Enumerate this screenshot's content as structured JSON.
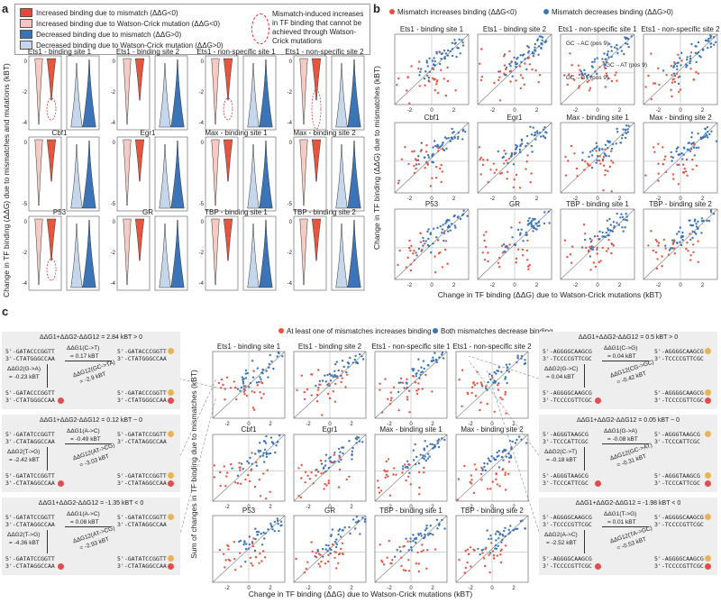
{
  "panels": {
    "a": "a",
    "b": "b",
    "c": "c"
  },
  "legend_a": {
    "items": [
      {
        "label": "Increased binding due to mismatch (ΔΔG<0)",
        "color": "#e04a3a"
      },
      {
        "label": "Increased binding due to Watson-Crick mutation (ΔΔG<0)",
        "color": "#f5c6c0"
      },
      {
        "label": "Decreased binding due to mismatch (ΔΔG>0)",
        "color": "#3a73b5"
      },
      {
        "label": "Decreased binding due to Watson-Crick mutation (ΔΔG>0)",
        "color": "#c4d6ec"
      }
    ],
    "dashed_note": "Mismatch-induced increases in TF binding that cannot be achieved through Watson-Crick mutations"
  },
  "a": {
    "ylabel": "Change in TF binding (ΔΔG) due to mismatches and mutations (kBT)",
    "titles": [
      "Ets1 - binding site 1",
      "Ets1 - binding site 2",
      "Ets1 - non-specific site 1",
      "Ets1 - non-specific site 2",
      "Cbf1",
      "Egr1",
      "Max - binding site 1",
      "Max - binding site 2",
      "P53",
      "GR",
      "TBP - binding site 1",
      "TBP - binding site 2"
    ]
  },
  "b": {
    "legend": [
      "Mismatch increases binding (ΔΔG<0)",
      "Mismatch decreases binding (ΔΔG>0)"
    ],
    "ylabel": "Change in TF binding (ΔΔG) due to mismatches (kBT)",
    "xlabel": "Change in TF binding (ΔΔG) due to Watson-Crick mutations (kBT)",
    "titles": [
      "Ets1 - binding site 1",
      "Ets1 - binding site 2",
      "Ets1 - non-specific site 1",
      "Ets1 - non-specific site 2",
      "Cbf1",
      "Egr1",
      "Max - binding site 1",
      "Max - binding site 2",
      "P53",
      "GR",
      "TBP - binding site 1",
      "TBP - binding site 2"
    ],
    "inset_labels": [
      "GC→AC (pos 9)",
      "GC→AT (pos 9)",
      "GC→GT (pos 9)"
    ]
  },
  "c": {
    "legend": [
      "At least one of mismatches increases binding",
      "Both mismatches decrease binding"
    ],
    "ylabel": "Sum of changes in TF binding due to mismatches (kBT)",
    "xlabel": "Change in TF binding (ΔΔG) due to Watson-Crick mutations (kBT)",
    "titles": [
      "Ets1 - binding site 1",
      "Ets1 - binding site 2",
      "Ets1 - non-specific site 1",
      "Ets1 - non-specific site 2",
      "Cbf1",
      "Egr1",
      "Max - binding site 1",
      "Max - binding site 2",
      "P53",
      "GR",
      "TBP - binding site 1",
      "TBP - binding site 2"
    ],
    "boxes": [
      {
        "header": "ΔΔG1+ΔΔG2-ΔΔG12 = 2.84 kBT > 0",
        "s1": "5'-GATACCCGGTT",
        "s2": "3'-CTATGGGCCAA",
        "g1": "ΔΔG1(C->T)",
        "v1": "= 0.17 kBT",
        "g2": "ΔΔG2(G->A)",
        "v2": "= -0.23 kBT",
        "g12": "ΔΔG12(GC->TA)",
        "v12": "= -2.9 kBT"
      },
      {
        "header": "ΔΔG1+ΔΔG2-ΔΔG12 = 0.12 kBT ~ 0",
        "s1": "5'-GATATCCGGTT",
        "s2": "3'-CTATAGGCCAA",
        "g1": "ΔΔG1(A->C)",
        "v1": "= -0.49 kBT",
        "g2": "ΔΔG2(T->G)",
        "v2": "= -2.42 kBT",
        "g12": "ΔΔG12(AT->CG)",
        "v12": "= -3.03 kBT"
      },
      {
        "header": "ΔΔG1+ΔΔG2-ΔΔG12 = -1.35 kBT < 0",
        "s1": "5'-GATATCCGGTT",
        "s2": "3'-CTATAGGCCAA",
        "g1": "ΔΔG1(A->C)",
        "v1": "= 0.08 kBT",
        "g2": "ΔΔG2(T->G)",
        "v2": "= -4.36 kBT",
        "g12": "ΔΔG12(AT->CG)",
        "v12": "= -2.93 kBT"
      },
      {
        "header": "ΔΔG1+ΔΔG2-ΔΔG12 = 0.5 kBT > 0",
        "s1": "5'-AGGGGCAAGCG",
        "s2": "3'-TCCCCGTTCGC",
        "g1": "ΔΔG1(C->G)",
        "v1": "= 0.04 kBT",
        "g2": "ΔΔG2(G->C)",
        "v2": "= 0.04 kBT",
        "g12": "ΔΔG12(CG->GC)",
        "v12": "= -0.42 kBT"
      },
      {
        "header": "ΔΔG1+ΔΔG2-ΔΔG12 = 0.05 kBT ~ 0",
        "s1": "5'-AGGGTAAGCG",
        "s2": "3'-TCCCATTCGC",
        "g1": "ΔΔG1(G->A)",
        "v1": "= -0.08 kBT",
        "g2": "ΔΔG2(C->T)",
        "v2": "= -0.18 kBT",
        "g12": "ΔΔG12(GC->AT)",
        "v12": "= -0.31 kBT"
      },
      {
        "header": "ΔΔG1+ΔΔG2-ΔΔG12 = -1.98 kBT < 0",
        "s1": "5'-AGGGGCAAGCG",
        "s2": "3'-TCCCCGTTCGC",
        "g1": "ΔΔG1(T->G)",
        "v1": "= 0.01 kBT",
        "g2": "ΔΔG2(A->C)",
        "v2": "= -2.52 kBT",
        "g12": "ΔΔG12(TA->GC)",
        "v12": "= -0.53 kBT"
      }
    ]
  },
  "colors": {
    "red": "#e8553f",
    "blue": "#3c74b8",
    "lightred": "#f6cbc4",
    "lightblue": "#c5d7ec",
    "grey": "#f0f0f0"
  }
}
